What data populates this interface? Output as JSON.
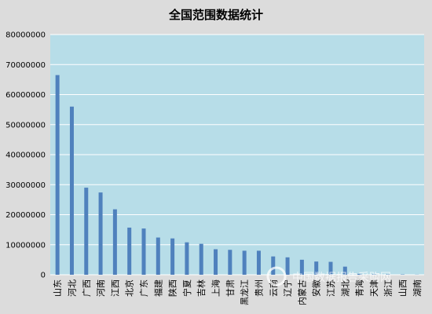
{
  "chart_data": {
    "type": "bar",
    "title": "全国范围数据统计",
    "xlabel": "",
    "ylabel": "",
    "ylim": [
      0,
      80000000
    ],
    "yticks": [
      0,
      10000000,
      20000000,
      30000000,
      40000000,
      50000000,
      60000000,
      70000000,
      80000000
    ],
    "ytick_labels": [
      "0",
      "10000000",
      "20000000",
      "30000000",
      "40000000",
      "50000000",
      "60000000",
      "70000000",
      "80000000"
    ],
    "grid": true,
    "legend": "none",
    "categories": [
      "山东",
      "河北",
      "广西",
      "河南",
      "江西",
      "北京",
      "广东",
      "福建",
      "陕西",
      "宁夏",
      "吉林",
      "上海",
      "甘肃",
      "黑龙江",
      "贵州",
      "云南",
      "辽宁",
      "内蒙古",
      "安徽",
      "江苏",
      "湖北",
      "青海",
      "天津",
      "浙江",
      "山西",
      "湖南"
    ],
    "values": [
      66500000,
      56000000,
      29000000,
      27400000,
      21800000,
      15700000,
      15400000,
      12400000,
      12100000,
      10800000,
      10300000,
      8500000,
      8300000,
      8000000,
      8000000,
      6100000,
      5800000,
      5000000,
      4400000,
      4300000,
      2700000,
      300000,
      200000,
      150000,
      100000,
      50000
    ],
    "colors": {
      "bar": "#4f81bd",
      "plot_bg": "#b7dde8",
      "page_bg": "#dcdcdc",
      "grid": "#ffffff",
      "text": "#000000"
    }
  },
  "watermark": "中国数据报告采购网"
}
